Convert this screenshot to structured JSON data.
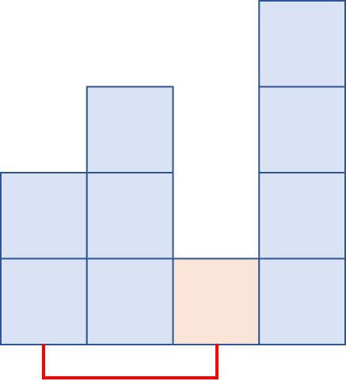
{
  "diagram": {
    "columns": [
      {
        "index": 0,
        "stack": 2,
        "highlighted": false
      },
      {
        "index": 1,
        "stack": 3,
        "highlighted": false
      },
      {
        "index": 2,
        "stack": 1,
        "highlighted": true
      },
      {
        "index": 3,
        "stack": 4,
        "highlighted": false
      }
    ],
    "bracket": {
      "from_column": 0,
      "to_column": 2
    },
    "colors": {
      "cell_fill": "#dae3f3",
      "cell_stroke": "#2f5597",
      "highlight_fill": "#fbe5d6",
      "bracket_stroke": "#ff0000",
      "background": "#ffffff"
    }
  }
}
